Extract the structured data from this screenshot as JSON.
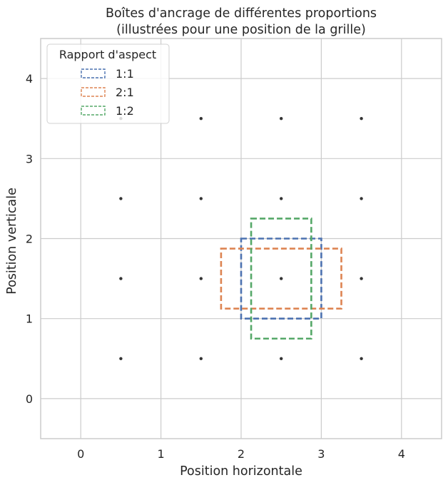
{
  "chart_data": {
    "type": "scatter",
    "title": "Boîtes d'ancrage de différentes proportions",
    "subtitle": "(illustrées pour une position de la grille)",
    "xlabel": "Position horizontale",
    "ylabel": "Position verticale",
    "xlim": [
      -0.5,
      4.5
    ],
    "ylim": [
      -0.5,
      4.5
    ],
    "xticks": [
      "0",
      "1",
      "2",
      "3",
      "4"
    ],
    "yticks": [
      "0",
      "1",
      "2",
      "3",
      "4"
    ],
    "grid": true,
    "points": {
      "x": [
        0.5,
        1.5,
        2.5,
        3.5,
        0.5,
        1.5,
        2.5,
        3.5,
        0.5,
        1.5,
        2.5,
        3.5,
        0.5,
        1.5,
        2.5,
        3.5
      ],
      "y": [
        0.5,
        0.5,
        0.5,
        0.5,
        1.5,
        1.5,
        1.5,
        1.5,
        2.5,
        2.5,
        2.5,
        2.5,
        3.5,
        3.5,
        3.5,
        3.5
      ],
      "color": "#333333"
    },
    "legend": {
      "title": "Rapport d'aspect",
      "position": "top-left"
    },
    "series": [
      {
        "name": "1:1",
        "color": "#4c72b0",
        "box": {
          "x0": 2.0,
          "y0": 1.0,
          "x1": 3.0,
          "y1": 2.0
        }
      },
      {
        "name": "2:1",
        "color": "#dd8452",
        "box": {
          "x0": 1.75,
          "y0": 1.125,
          "x1": 3.25,
          "y1": 1.875
        }
      },
      {
        "name": "1:2",
        "color": "#55a868",
        "box": {
          "x0": 2.125,
          "y0": 0.75,
          "x1": 2.875,
          "y1": 2.25
        }
      }
    ]
  }
}
